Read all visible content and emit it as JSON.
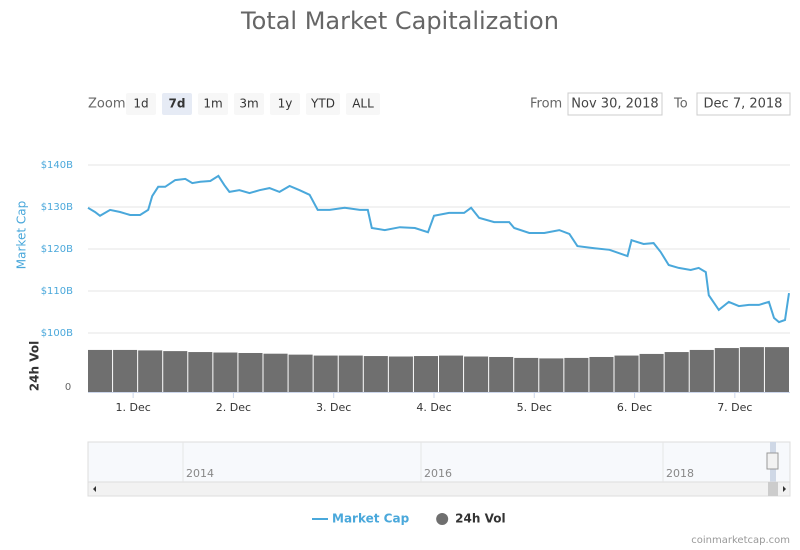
{
  "chart_data": {
    "type": "line",
    "title": "Total Market Capitalization",
    "zoom": {
      "label": "Zoom",
      "buttons": [
        "1d",
        "7d",
        "1m",
        "3m",
        "1y",
        "YTD",
        "ALL"
      ],
      "selected": "7d"
    },
    "range": {
      "from_label": "From",
      "from": "Nov 30, 2018",
      "to_label": "To",
      "to": "Dec 7, 2018"
    },
    "ylabel": "Market Cap",
    "y2label": "24h Vol",
    "xlim": [
      0.55,
      7.55
    ],
    "xticks": [
      {
        "value": 1,
        "label": "1. Dec"
      },
      {
        "value": 2,
        "label": "2. Dec"
      },
      {
        "value": 3,
        "label": "3. Dec"
      },
      {
        "value": 4,
        "label": "4. Dec"
      },
      {
        "value": 5,
        "label": "5. Dec"
      },
      {
        "value": 6,
        "label": "6. Dec"
      },
      {
        "value": 7,
        "label": "7. Dec"
      }
    ],
    "ylim": [
      98,
      145
    ],
    "yticks": [
      {
        "value": 100,
        "label": "$100B"
      },
      {
        "value": 110,
        "label": "$110B"
      },
      {
        "value": 120,
        "label": "$120B"
      },
      {
        "value": 130,
        "label": "$130B"
      },
      {
        "value": 140,
        "label": "$140B"
      }
    ],
    "y2lim": [
      0,
      20
    ],
    "y2ticks": [
      0
    ],
    "grid": true,
    "series": [
      {
        "name": "Market Cap",
        "color": "#4aa8db",
        "x": [
          0.55,
          0.62,
          0.67,
          0.77,
          0.87,
          0.97,
          1.07,
          1.15,
          1.19,
          1.25,
          1.32,
          1.42,
          1.52,
          1.59,
          1.67,
          1.77,
          1.85,
          1.91,
          1.96,
          2.06,
          2.16,
          2.26,
          2.36,
          2.46,
          2.56,
          2.66,
          2.76,
          2.84,
          2.96,
          3.11,
          3.26,
          3.34,
          3.38,
          3.51,
          3.66,
          3.81,
          3.94,
          4.0,
          4.15,
          4.3,
          4.37,
          4.45,
          4.6,
          4.75,
          4.8,
          4.95,
          5.1,
          5.25,
          5.35,
          5.43,
          5.6,
          5.75,
          5.93,
          5.97,
          6.09,
          6.19,
          6.26,
          6.34,
          6.44,
          6.56,
          6.64,
          6.71,
          6.74,
          6.84,
          6.94,
          7.04,
          7.14,
          7.24,
          7.34,
          7.39,
          7.44,
          7.5,
          7.54
        ],
        "values": [
          129.8,
          128.8,
          127.9,
          129.3,
          128.8,
          128.1,
          128.1,
          129.3,
          132.6,
          134.8,
          134.8,
          136.4,
          136.7,
          135.7,
          136.0,
          136.2,
          137.4,
          135.2,
          133.6,
          134.0,
          133.3,
          134.0,
          134.5,
          133.6,
          135.0,
          134.0,
          132.9,
          129.3,
          129.3,
          129.8,
          129.3,
          129.3,
          125.0,
          124.5,
          125.2,
          125.0,
          124.0,
          127.9,
          128.6,
          128.6,
          129.8,
          127.4,
          126.4,
          126.4,
          125.0,
          123.8,
          123.8,
          124.5,
          123.6,
          120.7,
          120.2,
          119.8,
          118.3,
          122.1,
          121.2,
          121.4,
          119.3,
          116.2,
          115.5,
          115.0,
          115.5,
          114.5,
          109.0,
          105.5,
          107.4,
          106.4,
          106.7,
          106.7,
          107.4,
          103.6,
          102.6,
          103.1,
          109.5
        ]
      },
      {
        "name": "24h Vol",
        "color": "#6f6f6f",
        "type": "column",
        "axis": "y2",
        "x": [
          0.55,
          0.8,
          1.05,
          1.3,
          1.55,
          1.8,
          2.05,
          2.3,
          2.55,
          2.8,
          3.05,
          3.3,
          3.55,
          3.8,
          4.05,
          4.3,
          4.55,
          4.8,
          5.05,
          5.3,
          5.55,
          5.8,
          6.05,
          6.3,
          6.55,
          6.8,
          7.05,
          7.3
        ],
        "values": [
          17.9,
          17.9,
          17.7,
          17.4,
          17.0,
          16.8,
          16.6,
          16.3,
          15.9,
          15.5,
          15.5,
          15.3,
          15.1,
          15.3,
          15.5,
          15.1,
          14.9,
          14.5,
          14.3,
          14.5,
          14.9,
          15.5,
          16.2,
          17.0,
          17.9,
          18.7,
          19.1,
          19.1
        ]
      }
    ],
    "navigator": {
      "labels": [
        "2014",
        "2016",
        "2018"
      ]
    },
    "credit": "coinmarketcap.com"
  }
}
